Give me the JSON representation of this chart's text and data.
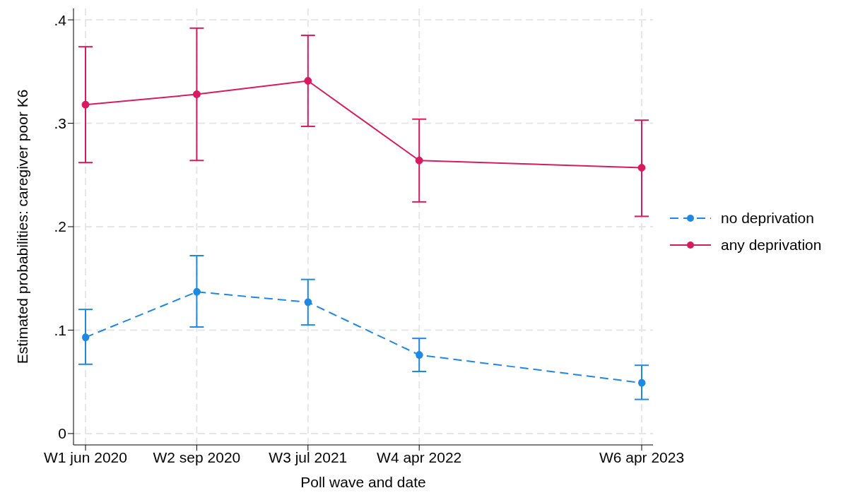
{
  "chart_data": {
    "type": "line",
    "xlabel": "Poll wave and date",
    "ylabel": "Estimated probabilities: caregiver poor K6",
    "categories": [
      "W1 jun 2020",
      "W2 sep 2020",
      "W3 jul 2021",
      "W4 apr 2022",
      null,
      "W6 apr 2023"
    ],
    "ylim": [
      -0.011,
      0.411
    ],
    "yticks": [
      0,
      {
        "value": 0.1,
        "label": ".1"
      },
      {
        "value": 0.2,
        "label": ".2"
      },
      {
        "value": 0.3,
        "label": ".3"
      },
      {
        "value": 0.4,
        "label": ".4"
      }
    ],
    "series": [
      {
        "name": "no deprivation",
        "color": "#1e88e5",
        "line_style": "dashed",
        "values": [
          0.093,
          0.137,
          0.127,
          0.076,
          null,
          0.049
        ],
        "errors": [
          [
            0.067,
            0.12
          ],
          [
            0.103,
            0.172
          ],
          [
            0.105,
            0.149
          ],
          [
            0.06,
            0.092
          ],
          null,
          [
            0.033,
            0.066
          ]
        ]
      },
      {
        "name": "any deprivation",
        "color": "#d81b60",
        "line_style": "solid",
        "values": [
          0.318,
          0.328,
          0.341,
          0.264,
          null,
          0.257
        ],
        "errors": [
          [
            0.262,
            0.374
          ],
          [
            0.264,
            0.392
          ],
          [
            0.297,
            0.385
          ],
          [
            0.224,
            0.304
          ],
          null,
          [
            0.21,
            0.303
          ]
        ]
      }
    ],
    "marker": "circle",
    "grid": true,
    "legend": "right"
  }
}
